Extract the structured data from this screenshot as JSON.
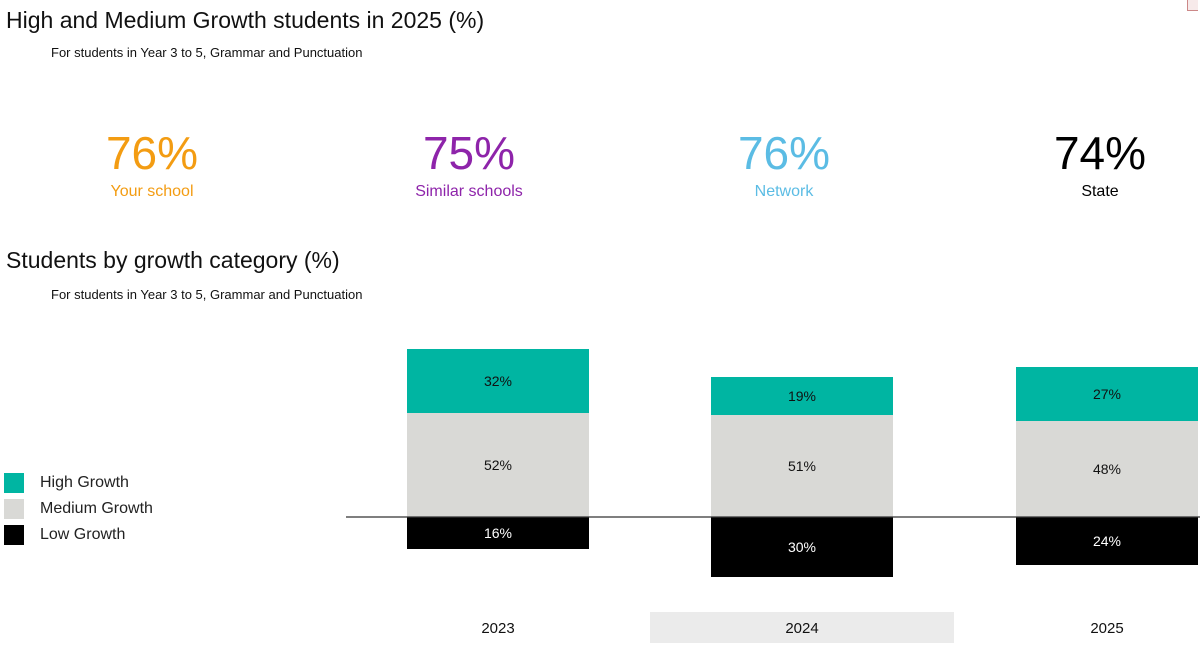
{
  "header": {
    "title": "High and Medium Growth students in 2025 (%)",
    "subtitle": "For students in Year 3 to 5, Grammar and Punctuation"
  },
  "kpis": [
    {
      "value": "76%",
      "label": "Your school",
      "color": "#f39c12"
    },
    {
      "value": "75%",
      "label": "Similar schools",
      "color": "#8e24aa"
    },
    {
      "value": "76%",
      "label": "Network",
      "color": "#5bbce4"
    },
    {
      "value": "74%",
      "label": "State",
      "color": "#000000"
    }
  ],
  "chart_section": {
    "title": "Students by growth category (%)",
    "subtitle": "For students in Year 3 to 5, Grammar and Punctuation"
  },
  "legend": [
    {
      "label": "High Growth",
      "color": "#00b5a2"
    },
    {
      "label": "Medium Growth",
      "color": "#d9d9d6"
    },
    {
      "label": "Low Growth",
      "color": "#000000"
    }
  ],
  "chart_data": {
    "type": "bar",
    "stacked": true,
    "baseline": "Low Growth below zero line, Medium and High Growth above",
    "title": "Students by growth category (%)",
    "subtitle": "For students in Year 3 to 5, Grammar and Punctuation",
    "categories": [
      "2023",
      "2024",
      "2025"
    ],
    "highlighted_category": "2024",
    "series": [
      {
        "name": "High Growth",
        "color": "#00b5a2",
        "values": [
          32,
          19,
          27
        ],
        "labels": [
          "32%",
          "19%",
          "27%"
        ]
      },
      {
        "name": "Medium Growth",
        "color": "#d9d9d6",
        "values": [
          52,
          51,
          48
        ],
        "labels": [
          "52%",
          "51%",
          "48%"
        ]
      },
      {
        "name": "Low Growth",
        "color": "#000000",
        "values": [
          16,
          30,
          24
        ],
        "labels": [
          "16%",
          "30%",
          "24%"
        ]
      }
    ],
    "grid": false,
    "legend_position": "left"
  }
}
